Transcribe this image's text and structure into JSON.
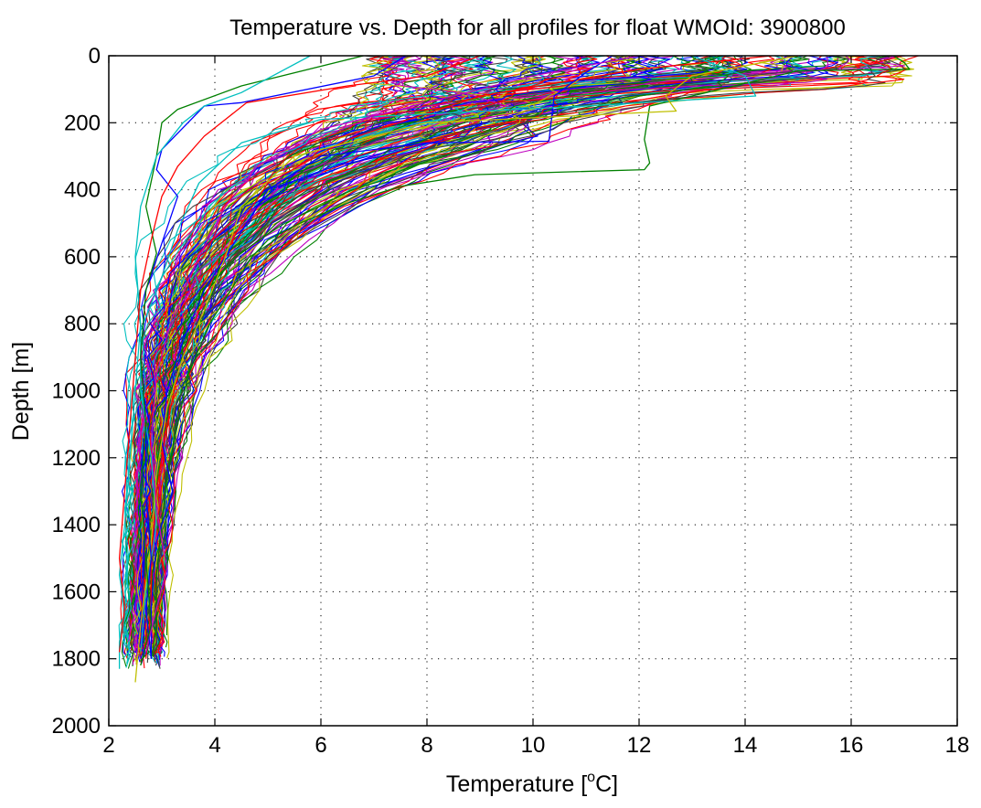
{
  "chart_data": {
    "type": "line",
    "title": "Temperature vs. Depth for all profiles for float WMOId: 3900800",
    "xlabel_prefix": "Temperature [",
    "xlabel_sup": "o",
    "xlabel_suffix": "C]",
    "ylabel": "Depth [m]",
    "xlim": [
      2,
      18
    ],
    "ylim": [
      0,
      2000
    ],
    "y_reversed": true,
    "grid": true,
    "legend": "none",
    "xticks": [
      2,
      4,
      6,
      8,
      10,
      12,
      14,
      16,
      18
    ],
    "yticks": [
      0,
      200,
      400,
      600,
      800,
      1000,
      1200,
      1400,
      1600,
      1800,
      2000
    ],
    "colors": [
      "#0000ff",
      "#008000",
      "#ff0000",
      "#00bfbf",
      "#bf00bf",
      "#bfbf00",
      "#404040"
    ],
    "profile_count_estimate": 150,
    "series": [
      {
        "name": "",
        "color": "#008000",
        "x": [
          16.8,
          17.0,
          17.1,
          15.0,
          12.2,
          12.1,
          12.2,
          12.1,
          8.9,
          7.5,
          6.5,
          5.6,
          5.0,
          4.7,
          4.3,
          3.9,
          3.5,
          3.3,
          3.1,
          3.0,
          2.9,
          2.9,
          2.8
        ],
        "y": [
          0,
          20,
          40,
          45,
          150,
          250,
          320,
          340,
          355,
          390,
          440,
          500,
          550,
          600,
          700,
          800,
          950,
          1100,
          1250,
          1400,
          1550,
          1700,
          1800
        ]
      },
      {
        "name": "",
        "color": "#ff0000",
        "x": [
          14.5,
          12.0,
          9.0,
          6.5,
          5.0,
          4.5,
          4.0,
          3.6,
          3.3,
          3.1,
          2.9,
          2.8,
          2.8,
          2.7
        ],
        "y": [
          0,
          40,
          120,
          250,
          380,
          500,
          650,
          800,
          950,
          1100,
          1300,
          1500,
          1650,
          1800
        ]
      },
      {
        "name": "",
        "color": "#0000ff",
        "x": [
          11.5,
          11.0,
          10.4,
          10.3,
          8.0,
          6.0,
          5.0,
          4.4,
          3.8,
          3.4,
          3.1,
          3.0,
          3.2,
          2.9,
          2.8,
          2.8
        ],
        "y": [
          0,
          50,
          120,
          255,
          260,
          300,
          400,
          550,
          700,
          850,
          1000,
          1150,
          1300,
          1450,
          1650,
          1800
        ]
      },
      {
        "name": "",
        "color": "#00bfbf",
        "x": [
          13.0,
          14.0,
          14.2,
          11.0,
          6.0,
          4.5,
          3.7,
          3.3,
          3.0,
          2.6,
          2.6,
          2.8,
          2.9,
          2.7,
          2.6
        ],
        "y": [
          0,
          60,
          120,
          150,
          190,
          260,
          380,
          520,
          660,
          820,
          1000,
          1200,
          1400,
          1600,
          1780
        ]
      },
      {
        "name": "",
        "color": "#bfbf00",
        "x": [
          15.0,
          13.0,
          12.5,
          12.7,
          8.0,
          5.5,
          4.5,
          4.2,
          3.8,
          3.4,
          3.1,
          2.9,
          2.8,
          2.6,
          2.5
        ],
        "y": [
          0,
          60,
          120,
          165,
          200,
          300,
          450,
          600,
          760,
          900,
          1050,
          1250,
          1450,
          1700,
          1870
        ]
      },
      {
        "name": "",
        "color": "#bf00bf",
        "x": [
          12.0,
          10.0,
          8.0,
          6.0,
          4.8,
          4.2,
          3.7,
          3.2,
          2.9,
          2.8,
          2.9,
          3.0,
          3.1,
          2.9,
          2.7
        ],
        "y": [
          0,
          60,
          140,
          220,
          330,
          450,
          600,
          780,
          950,
          1150,
          1350,
          1450,
          1530,
          1650,
          1780
        ]
      },
      {
        "name": "",
        "color": "#0000ff",
        "x": [
          7.6,
          7.0,
          4.5,
          3.8,
          3.0,
          2.9,
          3.3,
          3.0,
          2.7,
          2.6,
          2.7,
          2.7,
          2.8,
          2.7,
          2.8
        ],
        "y": [
          0,
          60,
          140,
          150,
          280,
          340,
          420,
          560,
          700,
          900,
          1100,
          1300,
          1500,
          1650,
          1800
        ]
      },
      {
        "name": "",
        "color": "#008000",
        "x": [
          6.8,
          4.5,
          3.3,
          3.0,
          2.9,
          2.7,
          2.9,
          2.7,
          2.6,
          2.7,
          2.6,
          2.7,
          2.8,
          2.6
        ],
        "y": [
          0,
          90,
          160,
          200,
          300,
          450,
          590,
          700,
          900,
          1100,
          1300,
          1500,
          1700,
          1820
        ]
      },
      {
        "name": "",
        "color": "#00bfbf",
        "x": [
          5.8,
          4.5,
          3.8,
          3.4,
          2.9,
          2.6,
          2.5,
          2.6,
          2.5,
          2.4,
          2.3,
          2.2,
          2.3,
          2.2,
          2.2
        ],
        "y": [
          0,
          110,
          150,
          200,
          300,
          450,
          600,
          800,
          1000,
          1200,
          1400,
          1550,
          1650,
          1750,
          1830
        ]
      },
      {
        "name": "",
        "color": "#ff0000",
        "x": [
          9.0,
          8.0,
          6.5,
          4.6,
          3.8,
          3.3,
          3.0,
          2.8,
          2.6,
          2.5,
          2.4,
          2.3,
          2.2,
          2.3,
          2.2
        ],
        "y": [
          0,
          60,
          90,
          140,
          240,
          330,
          420,
          550,
          700,
          900,
          1100,
          1300,
          1500,
          1650,
          1780
        ]
      }
    ]
  }
}
